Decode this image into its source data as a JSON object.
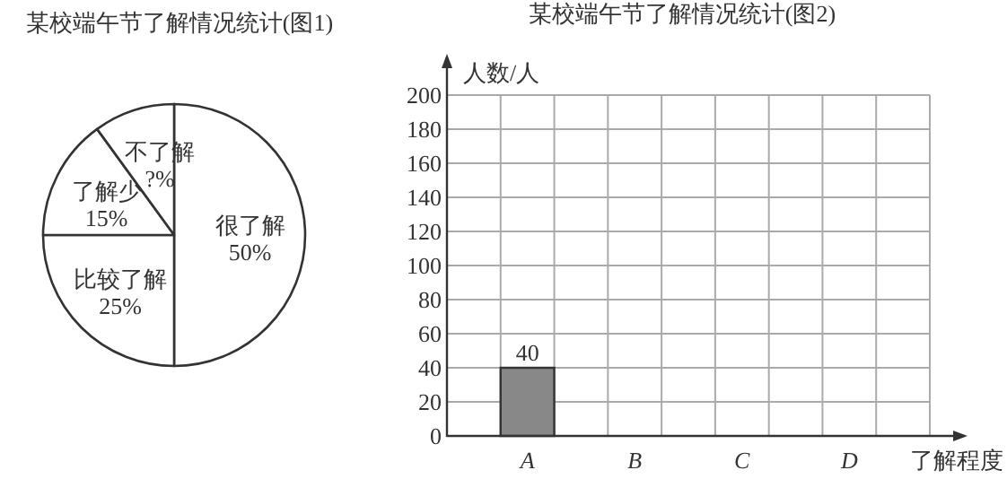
{
  "chart_data": [
    {
      "type": "pie",
      "title": "某校端午节了解情况统计(图1)",
      "categories": [
        "很了解",
        "比较了解",
        "了解少",
        "不了解"
      ],
      "values": [
        50,
        25,
        15,
        10
      ],
      "colors": [
        "#ffffff",
        "#ffffff",
        "#ffffff",
        "#ffffff"
      ],
      "value_labels": [
        "50%",
        "25%",
        "15%",
        "?%"
      ]
    },
    {
      "type": "bar",
      "title": "某校端午节了解情况统计(图2)",
      "xlabel": "了解程度",
      "ylabel": "人数/人",
      "categories": [
        "A",
        "B",
        "C",
        "D"
      ],
      "values": [
        40,
        null,
        null,
        null
      ],
      "color": "#888888",
      "value_labels": [
        "40",
        null,
        null,
        null
      ],
      "ylim": [
        0,
        200
      ],
      "yticks": [
        0,
        20,
        40,
        60,
        80,
        100,
        120,
        140,
        160,
        180,
        200
      ],
      "grid": true
    }
  ]
}
